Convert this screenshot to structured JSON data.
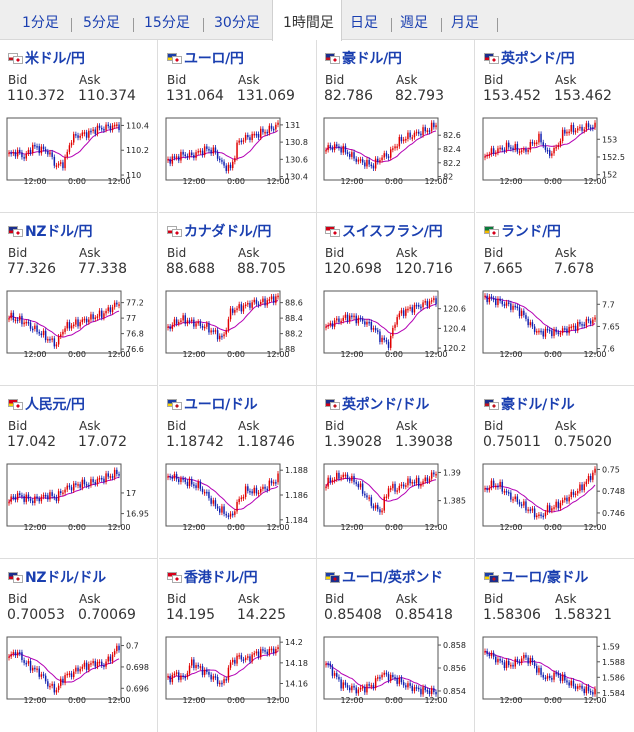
{
  "tabs": [
    "1分足",
    "5分足",
    "15分足",
    "30分足",
    "1時間足",
    "日足",
    "週足",
    "月足"
  ],
  "active_tab": 4,
  "labels": {
    "bid": "Bid",
    "ask": "Ask"
  },
  "colors": {
    "up": "#e00000",
    "down": "#1020b0",
    "ma": "#b400b4",
    "link": "#1a3fb0"
  },
  "pairs": [
    {
      "name": "米ドル/円",
      "bid": "110.372",
      "ask": "110.374",
      "flag": [
        "us",
        "jp"
      ],
      "chart_data": {
        "type": "candlestick",
        "x_ticks": [
          "12:00",
          "0:00",
          "12:00"
        ],
        "y_ticks": [
          "110.4",
          "110.2",
          "110"
        ],
        "ylim": [
          109.96,
          110.46
        ]
      }
    },
    {
      "name": "ユーロ/円",
      "bid": "131.064",
      "ask": "131.069",
      "flag": [
        "eu",
        "jp"
      ],
      "chart_data": {
        "type": "candlestick",
        "x_ticks": [
          "12:00",
          "0:00",
          "12:00"
        ],
        "y_ticks": [
          "131",
          "130.8",
          "130.6",
          "130.4"
        ],
        "ylim": [
          130.36,
          131.08
        ]
      }
    },
    {
      "name": "豪ドル/円",
      "bid": "82.786",
      "ask": "82.793",
      "flag": [
        "au",
        "jp"
      ],
      "chart_data": {
        "type": "candlestick",
        "x_ticks": [
          "12:00",
          "0:00",
          "12:00"
        ],
        "y_ticks": [
          "82.6",
          "82.4",
          "82.2",
          "82"
        ],
        "ylim": [
          81.95,
          82.85
        ]
      }
    },
    {
      "name": "英ポンド/円",
      "bid": "153.452",
      "ask": "153.462",
      "flag": [
        "gb",
        "jp"
      ],
      "chart_data": {
        "type": "candlestick",
        "x_ticks": [
          "12:00",
          "0:00",
          "12:00"
        ],
        "y_ticks": [
          "153",
          "152.5",
          "152"
        ],
        "ylim": [
          151.85,
          153.6
        ]
      }
    },
    {
      "name": "NZドル/円",
      "bid": "77.326",
      "ask": "77.338",
      "flag": [
        "nz",
        "jp"
      ],
      "chart_data": {
        "type": "candlestick",
        "x_ticks": [
          "12:00",
          "0:00",
          "12:00"
        ],
        "y_ticks": [
          "77.2",
          "77",
          "76.8",
          "76.6"
        ],
        "ylim": [
          76.55,
          77.35
        ]
      }
    },
    {
      "name": "カナダドル/円",
      "bid": "88.688",
      "ask": "88.705",
      "flag": [
        "ca",
        "jp"
      ],
      "chart_data": {
        "type": "candlestick",
        "x_ticks": [
          "12:00",
          "0:00",
          "12:00"
        ],
        "y_ticks": [
          "88.6",
          "88.4",
          "88.2",
          "88"
        ],
        "ylim": [
          87.95,
          88.75
        ]
      }
    },
    {
      "name": "スイスフラン/円",
      "bid": "120.698",
      "ask": "120.716",
      "flag": [
        "ch",
        "jp"
      ],
      "chart_data": {
        "type": "candlestick",
        "x_ticks": [
          "12:00",
          "0:00",
          "12:00"
        ],
        "y_ticks": [
          "120.6",
          "120.4",
          "120.2"
        ],
        "ylim": [
          120.15,
          120.78
        ]
      }
    },
    {
      "name": "ランド/円",
      "bid": "7.665",
      "ask": "7.678",
      "flag": [
        "za",
        "jp"
      ],
      "chart_data": {
        "type": "candlestick",
        "x_ticks": [
          "12:00",
          "0:00",
          "12:00"
        ],
        "y_ticks": [
          "7.7",
          "7.65",
          "7.6"
        ],
        "ylim": [
          7.59,
          7.73
        ]
      }
    },
    {
      "name": "人民元/円",
      "bid": "17.042",
      "ask": "17.072",
      "flag": [
        "cn",
        "jp"
      ],
      "chart_data": {
        "type": "candlestick",
        "x_ticks": [
          "12:00",
          "0:00",
          "12:00"
        ],
        "y_ticks": [
          "17",
          "16.95"
        ],
        "ylim": [
          16.92,
          17.07
        ]
      }
    },
    {
      "name": "ユーロ/ドル",
      "bid": "1.18742",
      "ask": "1.18746",
      "flag": [
        "eu",
        "us"
      ],
      "chart_data": {
        "type": "candlestick",
        "x_ticks": [
          "12:00",
          "0:00",
          "12:00"
        ],
        "y_ticks": [
          "1.188",
          "1.186",
          "1.184"
        ],
        "ylim": [
          1.1835,
          1.1885
        ]
      }
    },
    {
      "name": "英ポンド/ドル",
      "bid": "1.39028",
      "ask": "1.39038",
      "flag": [
        "gb",
        "us"
      ],
      "chart_data": {
        "type": "candlestick",
        "x_ticks": [
          "12:00",
          "0:00",
          "12:00"
        ],
        "y_ticks": [
          "1.39",
          "1.385"
        ],
        "ylim": [
          1.3805,
          1.3915
        ]
      }
    },
    {
      "name": "豪ドル/ドル",
      "bid": "0.75011",
      "ask": "0.75020",
      "flag": [
        "au",
        "us"
      ],
      "chart_data": {
        "type": "candlestick",
        "x_ticks": [
          "12:00",
          "0:00",
          "12:00"
        ],
        "y_ticks": [
          "0.75",
          "0.748",
          "0.746"
        ],
        "ylim": [
          0.7448,
          0.7505
        ]
      }
    },
    {
      "name": "NZドル/ドル",
      "bid": "0.70053",
      "ask": "0.70069",
      "flag": [
        "nz",
        "us"
      ],
      "chart_data": {
        "type": "candlestick",
        "x_ticks": [
          "12:00",
          "0:00",
          "12:00"
        ],
        "y_ticks": [
          "0.7",
          "0.698",
          "0.696"
        ],
        "ylim": [
          0.695,
          0.7008
        ]
      }
    },
    {
      "name": "香港ドル/円",
      "bid": "14.195",
      "ask": "14.225",
      "flag": [
        "hk",
        "jp"
      ],
      "chart_data": {
        "type": "candlestick",
        "x_ticks": [
          "12:00",
          "0:00",
          "12:00"
        ],
        "y_ticks": [
          "14.2",
          "14.18",
          "14.16"
        ],
        "ylim": [
          14.145,
          14.205
        ]
      }
    },
    {
      "name": "ユーロ/英ポンド",
      "bid": "0.85408",
      "ask": "0.85418",
      "flag": [
        "eu",
        "gb"
      ],
      "chart_data": {
        "type": "candlestick",
        "x_ticks": [
          "12:00",
          "0:00",
          "12:00"
        ],
        "y_ticks": [
          "0.858",
          "0.856",
          "0.854"
        ],
        "ylim": [
          0.8533,
          0.8587
        ]
      }
    },
    {
      "name": "ユーロ/豪ドル",
      "bid": "1.58306",
      "ask": "1.58321",
      "flag": [
        "eu",
        "au"
      ],
      "chart_data": {
        "type": "candlestick",
        "x_ticks": [
          "12:00",
          "0:00",
          "12:00"
        ],
        "y_ticks": [
          "1.59",
          "1.588",
          "1.586",
          "1.584"
        ],
        "ylim": [
          1.5832,
          1.5912
        ]
      }
    }
  ]
}
